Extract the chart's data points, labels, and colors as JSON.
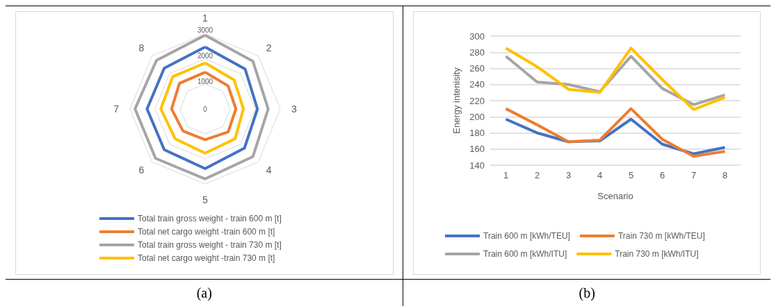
{
  "chart_data": [
    {
      "type": "radar",
      "categories": [
        "1",
        "2",
        "3",
        "4",
        "5",
        "6",
        "7",
        "8"
      ],
      "ylim": [
        0,
        3000
      ],
      "yticks": [
        0,
        1000,
        2000,
        3000
      ],
      "legend": "bottom",
      "annotations": [
        "(a)"
      ],
      "series": [
        {
          "name": "Total train gross weight - train 600 m [t]",
          "color": "#4472c4",
          "values": [
            2480,
            2260,
            2090,
            2220,
            2390,
            2310,
            2320,
            2310
          ]
        },
        {
          "name": "Total net cargo weight -train 600 m [t]",
          "color": "#ed7d31",
          "values": [
            1470,
            1300,
            1230,
            1300,
            1230,
            1250,
            1340,
            1450
          ]
        },
        {
          "name": "Total train gross weight - train 730 m [t]",
          "color": "#a5a5a5",
          "values": [
            2950,
            2700,
            2520,
            2700,
            2800,
            2800,
            2800,
            2750
          ]
        },
        {
          "name": "Total net cargo weight -train 730 m [t]",
          "color": "#ffc000",
          "values": [
            1840,
            1640,
            1530,
            1690,
            1770,
            1690,
            1770,
            1830
          ]
        }
      ]
    },
    {
      "type": "line",
      "categories": [
        "1",
        "2",
        "3",
        "4",
        "5",
        "6",
        "7",
        "8"
      ],
      "xlabel": "Scenario",
      "ylabel": "Energy intenisity",
      "ylim": [
        140,
        300
      ],
      "yticks": [
        140,
        160,
        180,
        200,
        220,
        240,
        260,
        280,
        300
      ],
      "grid": "y",
      "legend": "bottom",
      "marker": "none",
      "line_style": "solid",
      "annotations": [
        "(b)"
      ],
      "series": [
        {
          "name": "Train 600 m [kWh/TEU]",
          "color": "#4472c4",
          "values": [
            197,
            180,
            169,
            170,
            197,
            166,
            154,
            162
          ]
        },
        {
          "name": "Train 730 m [kWh/TEU]",
          "color": "#ed7d31",
          "values": [
            210,
            190,
            169,
            171,
            210,
            172,
            151,
            157
          ]
        },
        {
          "name": "Train 600 m [kWh/ITU]",
          "color": "#a5a5a5",
          "values": [
            275,
            243,
            240,
            231,
            275,
            235,
            215,
            227
          ]
        },
        {
          "name": "Train 730 m [kWh/ITU]",
          "color": "#ffc000",
          "values": [
            285,
            262,
            234,
            230,
            285,
            246,
            209,
            224
          ]
        }
      ]
    }
  ]
}
